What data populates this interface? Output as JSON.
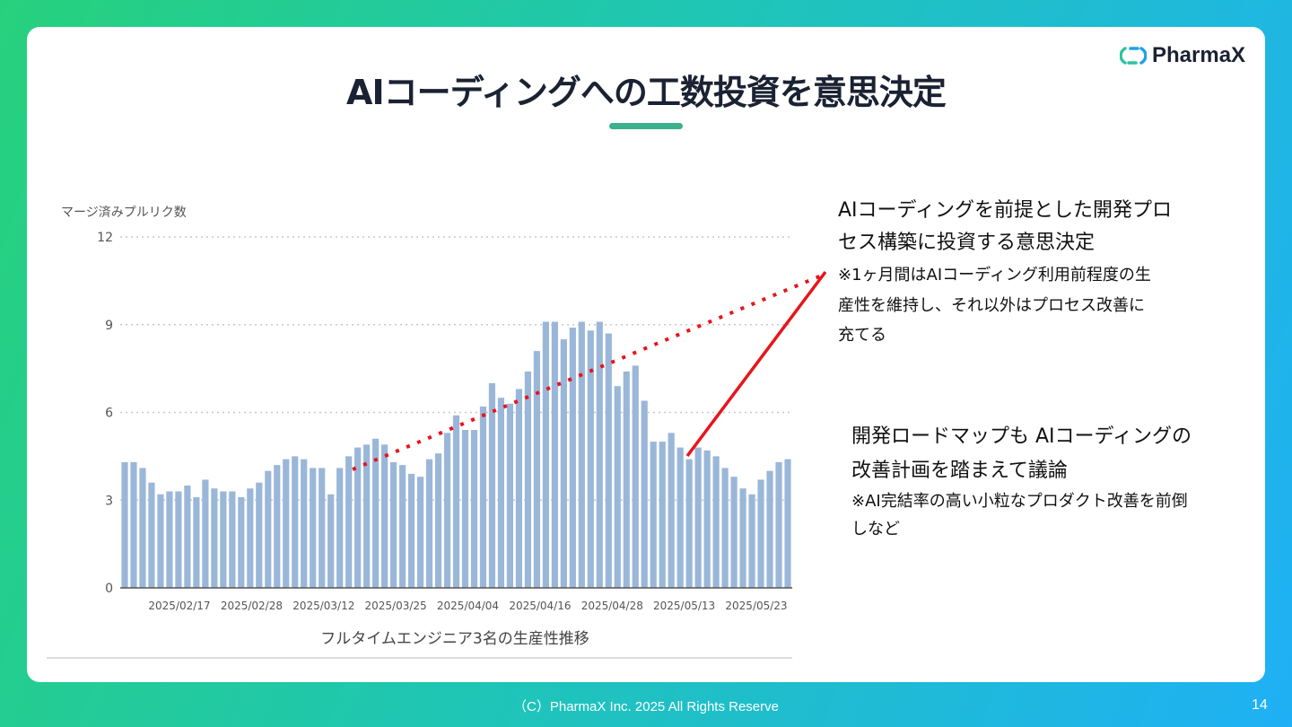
{
  "slide": {
    "title": "AIコーディングへの工数投資を意思決定",
    "logo_text": "PharmaX",
    "footer": "（C）PharmaX Inc. 2025  All Rights Reserve",
    "page_number": "14"
  },
  "annotations": {
    "upper_heading": "AIコーディングを前提とした開発プロセス構築に投資する意思決定",
    "upper_heading_line1": "AIコーディングを前提とした開発プロ",
    "upper_heading_line2": "セス構築に投資する意思決定",
    "upper_note_line1": "※1ヶ月間はAIコーディング利用前程度の生",
    "upper_note_line2": "産性を維持し、それ以外はプロセス改善に",
    "upper_note_line3": "充てる",
    "lower_heading_line1": "開発ロードマップも AIコーディングの",
    "lower_heading_line2": "改善計画を踏まえて議論",
    "lower_note_line1": "※AI完結率の高い小粒なプロダクト改善を前倒",
    "lower_note_line2": "しなど"
  },
  "colors": {
    "bar": "#9ab7d9",
    "trend": "#e8141b",
    "title_underline": "#3db08c",
    "grid": "#c8c8c8"
  },
  "chart_data": {
    "type": "bar",
    "ylabel": "マージ済みプルリク数",
    "xlabel": "フルタイムエンジニア3名の生産性推移",
    "ylim": [
      0,
      12
    ],
    "yticks": [
      0,
      3,
      6,
      9,
      12
    ],
    "xtick_labels": [
      "2025/02/17",
      "2025/02/28",
      "2025/03/12",
      "2025/03/25",
      "2025/04/04",
      "2025/04/16",
      "2025/04/28",
      "2025/05/13",
      "2025/05/23"
    ],
    "grid": true,
    "values": [
      4.3,
      4.3,
      4.1,
      3.6,
      3.2,
      3.3,
      3.3,
      3.5,
      3.1,
      3.7,
      3.4,
      3.3,
      3.3,
      3.1,
      3.4,
      3.6,
      4.0,
      4.2,
      4.4,
      4.5,
      4.4,
      4.1,
      4.1,
      3.2,
      4.1,
      4.5,
      4.8,
      4.9,
      5.1,
      4.9,
      4.3,
      4.2,
      3.9,
      3.8,
      4.4,
      4.6,
      5.3,
      5.9,
      5.4,
      5.4,
      6.2,
      7.0,
      6.5,
      6.3,
      6.8,
      7.4,
      8.1,
      9.1,
      9.1,
      8.5,
      8.9,
      9.1,
      8.8,
      9.1,
      8.7,
      6.9,
      7.4,
      7.6,
      6.4,
      5.0,
      5.0,
      5.3,
      4.8,
      4.4,
      4.8,
      4.7,
      4.5,
      4.1,
      3.8,
      3.4,
      3.2,
      3.7,
      4.0,
      4.3,
      4.4
    ]
  }
}
